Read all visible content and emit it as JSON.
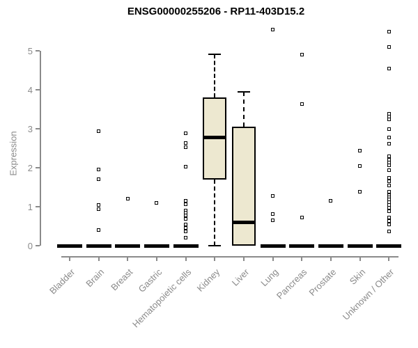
{
  "title": "ENSG00000255206 - RP11-403D15.2",
  "chart_data": {
    "type": "boxplot",
    "title": "ENSG00000255206 - RP11-403D15.2",
    "xlabel": "",
    "ylabel": "Expression",
    "ylim": [
      0,
      5
    ],
    "yticks": [
      0,
      1,
      2,
      3,
      4,
      5
    ],
    "grid": false,
    "legend": false,
    "categories": [
      "Bladder",
      "Brain",
      "Breast",
      "Gastric",
      "Hematopoietic cells",
      "Kidney",
      "Liver",
      "Lung",
      "Pancreas",
      "Prostate",
      "Skin",
      "Unknown / Other"
    ],
    "boxes": [
      {
        "category": "Bladder",
        "q1": 0,
        "median": 0,
        "q3": 0,
        "whisker_low": 0,
        "whisker_high": 0,
        "outliers": []
      },
      {
        "category": "Brain",
        "q1": 0,
        "median": 0,
        "q3": 0,
        "whisker_low": 0,
        "whisker_high": 0,
        "outliers": [
          2.93,
          1.95,
          1.71,
          1.05,
          0.93,
          0.41
        ]
      },
      {
        "category": "Breast",
        "q1": 0,
        "median": 0,
        "q3": 0,
        "whisker_low": 0,
        "whisker_high": 0,
        "outliers": [
          1.21
        ]
      },
      {
        "category": "Gastric",
        "q1": 0,
        "median": 0,
        "q3": 0,
        "whisker_low": 0,
        "whisker_high": 0,
        "outliers": [
          1.09
        ]
      },
      {
        "category": "Hematopoietic cells",
        "q1": 0,
        "median": 0,
        "q3": 0,
        "whisker_low": 0,
        "whisker_high": 0,
        "outliers": [
          2.88,
          2.64,
          2.52,
          2.02,
          1.16,
          1.07,
          0.91,
          0.84,
          0.77,
          0.68,
          0.55,
          0.46,
          0.36,
          0.2
        ]
      },
      {
        "category": "Kidney",
        "q1": 1.7,
        "median": 2.79,
        "q3": 3.81,
        "whisker_low": 0,
        "whisker_high": 4.91,
        "outliers": []
      },
      {
        "category": "Liver",
        "q1": 0,
        "median": 0.6,
        "q3": 3.06,
        "whisker_low": 0,
        "whisker_high": 3.95,
        "outliers": []
      },
      {
        "category": "Lung",
        "q1": 0,
        "median": 0,
        "q3": 0,
        "whisker_low": 0,
        "whisker_high": 0,
        "outliers": [
          5.55,
          1.27,
          0.82,
          0.66
        ]
      },
      {
        "category": "Pancreas",
        "q1": 0,
        "median": 0,
        "q3": 0,
        "whisker_low": 0,
        "whisker_high": 0,
        "outliers": [
          4.91,
          3.63,
          0.73
        ]
      },
      {
        "category": "Prostate",
        "q1": 0,
        "median": 0,
        "q3": 0,
        "whisker_low": 0,
        "whisker_high": 0,
        "outliers": [
          1.16
        ]
      },
      {
        "category": "Skin",
        "q1": 0,
        "median": 0,
        "q3": 0,
        "whisker_low": 0,
        "whisker_high": 0,
        "outliers": [
          2.43,
          2.04,
          1.38
        ]
      },
      {
        "category": "Unknown / Other",
        "q1": 0,
        "median": 0,
        "q3": 0,
        "whisker_low": 0,
        "whisker_high": 0,
        "outliers": [
          5.5,
          5.09,
          4.54,
          3.38,
          3.31,
          3.25,
          3.0,
          2.77,
          2.61,
          2.29,
          2.2,
          2.13,
          2.07,
          1.93,
          1.75,
          1.66,
          1.54,
          1.39,
          1.3,
          1.25,
          1.18,
          1.11,
          1.04,
          0.98,
          0.89,
          0.73,
          0.63,
          0.54,
          0.36
        ]
      }
    ],
    "colors": {
      "box_fill": "#ede8d0",
      "box_border": "#000000",
      "median": "#000000",
      "axis": "#8a8a8a",
      "tick_text": "#8a8a8a",
      "title_text": "#000000",
      "outlier_fill": "#ffffff",
      "background": "#ffffff"
    }
  }
}
